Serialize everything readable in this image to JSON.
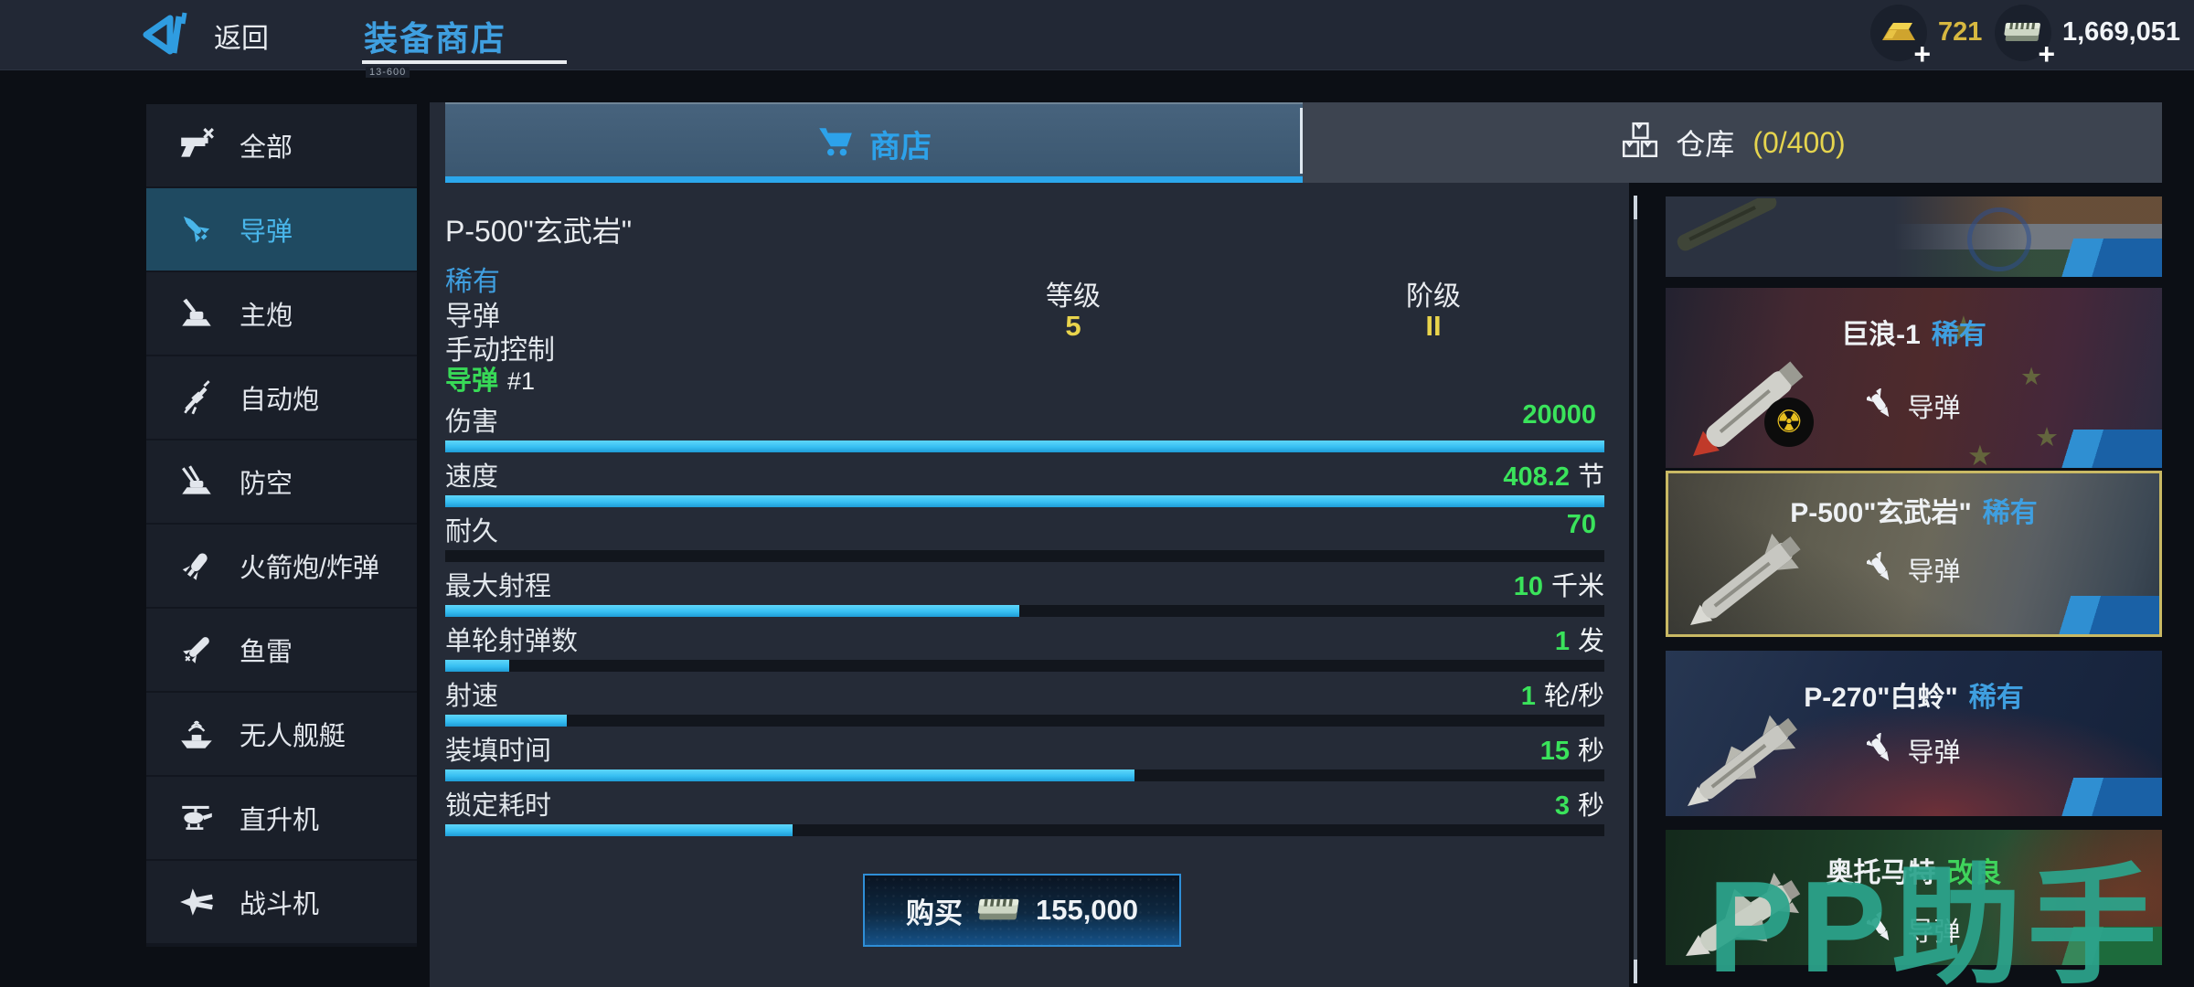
{
  "top_bar": {
    "back_label": "返回",
    "title": "装备商店",
    "title_tag": "13-600",
    "gold": "721",
    "cash": "1,669,051",
    "plus": "+"
  },
  "sidebar": {
    "items": [
      {
        "label": "全部",
        "icon": "all-weapons-icon",
        "selected": false
      },
      {
        "label": "导弹",
        "icon": "missile-icon",
        "selected": true
      },
      {
        "label": "主炮",
        "icon": "main-gun-icon",
        "selected": false
      },
      {
        "label": "自动炮",
        "icon": "autocannon-icon",
        "selected": false
      },
      {
        "label": "防空",
        "icon": "air-defense-icon",
        "selected": false
      },
      {
        "label": "火箭炮/炸弹",
        "icon": "rocket-bomb-icon",
        "selected": false
      },
      {
        "label": "鱼雷",
        "icon": "torpedo-icon",
        "selected": false
      },
      {
        "label": "无人舰艇",
        "icon": "drone-boat-icon",
        "selected": false
      },
      {
        "label": "直升机",
        "icon": "helicopter-icon",
        "selected": false
      },
      {
        "label": "战斗机",
        "icon": "fighter-jet-icon",
        "selected": false
      }
    ]
  },
  "tabs": {
    "shop_label": "商店",
    "warehouse_label": "仓库",
    "warehouse_count": "(0/400)"
  },
  "detail": {
    "name": "P-500\"玄武岩\"",
    "rarity": "稀有",
    "type": "导弹",
    "control": "手动控制",
    "level_label": "等级",
    "level_value": "5",
    "tier_label": "阶级",
    "tier_value": "II",
    "group_label": "导弹",
    "group_number": "#1",
    "stats": [
      {
        "label": "伤害",
        "value": "20000",
        "unit": "",
        "bar": 100
      },
      {
        "label": "速度",
        "value": "408.2",
        "unit": "节",
        "bar": 100
      },
      {
        "label": "耐久",
        "value": "70",
        "unit": "",
        "bar": 0
      },
      {
        "label": "最大射程",
        "value": "10",
        "unit": "千米",
        "bar": 49.5
      },
      {
        "label": "单轮射弹数",
        "value": "1",
        "unit": "发",
        "bar": 5.5
      },
      {
        "label": "射速",
        "value": "1",
        "unit": "轮/秒",
        "bar": 10.5
      },
      {
        "label": "装填时间",
        "value": "15",
        "unit": "秒",
        "bar": 59.5
      },
      {
        "label": "锁定耗时",
        "value": "3",
        "unit": "秒",
        "bar": 30
      }
    ],
    "buy_label": "购买",
    "buy_price": "155,000"
  },
  "item_list": [
    {
      "name": "",
      "rarity": "",
      "type": ""
    },
    {
      "name": "巨浪-1",
      "rarity": "稀有",
      "type": "导弹"
    },
    {
      "name": "P-500\"玄武岩\"",
      "rarity": "稀有",
      "type": "导弹"
    },
    {
      "name": "P-270\"白蛉\"",
      "rarity": "稀有",
      "type": "导弹"
    },
    {
      "name": "奥托马特",
      "rarity": "改良",
      "type": "导弹"
    }
  ],
  "watermark": "PP助手",
  "colors": {
    "accent_blue": "#2da2ea",
    "rarity_blue": "#3f9fe0",
    "rarity_green": "#3fd45c",
    "value_green": "#3ae35b",
    "tier_yellow": "#e9d44c",
    "bar_cyan": "#37bff2",
    "selected_border": "#c9b964"
  }
}
